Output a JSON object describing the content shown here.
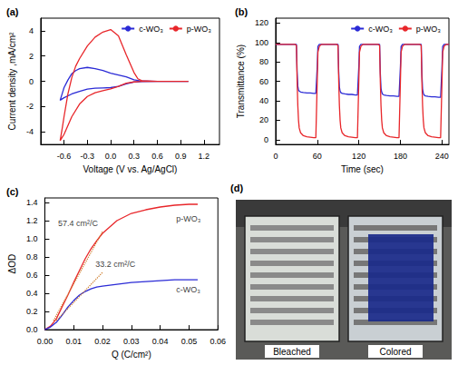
{
  "chart_data": [
    {
      "type": "line",
      "panel": "(a)",
      "x_label": "Voltage (V vs. Ag/AgCl)",
      "y_label": "Current density ,mA/cm²",
      "xlim": [
        -0.9,
        1.4
      ],
      "xticks": [
        -0.6,
        -0.3,
        {
          "value": 0,
          "label": "0.0"
        },
        0.3,
        0.6,
        0.9,
        1.2
      ],
      "ylim": [
        -5,
        5
      ],
      "yticks": [
        -4,
        -2,
        0,
        2,
        4
      ],
      "grid": false,
      "legend": "upper right",
      "series": [
        {
          "name": "c-WO₃",
          "color": "#2b2bd6",
          "x": [
            1.0,
            0.6,
            0.4,
            0.3,
            0.2,
            0.1,
            0.0,
            -0.1,
            -0.2,
            -0.3,
            -0.4,
            -0.5,
            -0.6,
            -0.65,
            -0.62,
            -0.6,
            -0.55,
            -0.5,
            -0.45,
            -0.4,
            -0.3,
            -0.2,
            -0.1,
            0.0,
            0.1,
            0.2,
            0.3,
            0.4,
            0.6,
            1.0
          ],
          "values": [
            0,
            0,
            -0.02,
            -0.05,
            -0.2,
            -0.4,
            -0.5,
            -0.52,
            -0.55,
            -0.62,
            -0.8,
            -1.0,
            -1.3,
            -1.5,
            -0.9,
            -0.5,
            0.1,
            0.6,
            0.85,
            1.0,
            1.1,
            1.0,
            0.85,
            0.65,
            0.5,
            0.35,
            0.12,
            0.02,
            0,
            0
          ]
        },
        {
          "name": "p-WO₃",
          "color": "#e8262a",
          "x": [
            1.0,
            0.6,
            0.4,
            0.3,
            0.2,
            0.1,
            0.0,
            -0.1,
            -0.2,
            -0.3,
            -0.4,
            -0.5,
            -0.6,
            -0.65,
            -0.62,
            -0.6,
            -0.55,
            -0.5,
            -0.45,
            -0.4,
            -0.3,
            -0.2,
            -0.1,
            0.0,
            0.1,
            0.2,
            0.3,
            0.35,
            0.4,
            0.6,
            1.0
          ],
          "values": [
            0,
            0,
            0,
            -0.05,
            -0.15,
            -0.4,
            -0.6,
            -0.75,
            -0.9,
            -1.2,
            -1.8,
            -2.8,
            -4.2,
            -4.7,
            -3.6,
            -2.8,
            -1.0,
            0.3,
            1.2,
            1.8,
            2.8,
            3.5,
            3.9,
            4.1,
            3.6,
            2.1,
            0.7,
            0.2,
            0.05,
            0,
            0
          ]
        }
      ]
    },
    {
      "type": "line",
      "panel": "(b)",
      "x_label": "Time (sec)",
      "y_label": "Transmittance (%)",
      "xlim": [
        0,
        250
      ],
      "xticks": [
        0,
        60,
        120,
        180,
        240
      ],
      "ylim": [
        -5,
        125
      ],
      "yticks": [
        0,
        20,
        40,
        60,
        80,
        100,
        120
      ],
      "grid": false,
      "legend": "upper right",
      "x": [
        0,
        6,
        28,
        30,
        31,
        32,
        33,
        34,
        36,
        40,
        45,
        50,
        55,
        58,
        60,
        61,
        63,
        66,
        88,
        90,
        91,
        92,
        93,
        94,
        96,
        100,
        105,
        110,
        115,
        118,
        120,
        121,
        123,
        126,
        148,
        150,
        151,
        152,
        153,
        154,
        156,
        160,
        165,
        170,
        175,
        178,
        180,
        181,
        183,
        186,
        208,
        210,
        211,
        212,
        213,
        214,
        216,
        220,
        225,
        230,
        235,
        238,
        240,
        241,
        243,
        246,
        250
      ],
      "series": [
        {
          "name": "c-WO₃",
          "color": "#2b2bd6",
          "values": [
            98,
            98,
            98,
            98,
            70,
            55,
            51,
            50,
            49,
            48.5,
            48,
            48,
            47.5,
            47.5,
            75,
            96,
            98,
            98,
            98,
            98,
            70,
            54,
            50,
            48.5,
            47.5,
            47,
            46.5,
            46.5,
            46,
            46,
            75,
            96,
            98,
            98,
            98,
            98,
            69,
            53,
            49,
            47,
            46,
            45.5,
            45,
            45,
            44.5,
            44.5,
            75,
            96,
            98,
            98,
            98,
            98,
            68,
            52,
            48,
            46,
            45,
            44.5,
            44,
            44,
            43.5,
            43.5,
            75,
            96,
            98,
            98,
            98
          ]
        },
        {
          "name": "p-WO₃",
          "color": "#e8262a",
          "values": [
            98,
            98,
            98,
            97,
            60,
            35,
            20,
            12,
            7,
            4,
            3,
            2.5,
            2,
            2,
            60,
            90,
            96,
            98,
            98,
            97,
            60,
            35,
            20,
            12,
            7,
            4,
            3,
            2.5,
            2,
            2,
            60,
            90,
            96,
            98,
            98,
            97,
            60,
            35,
            20,
            12,
            7,
            4,
            3,
            2.5,
            2,
            2,
            60,
            90,
            96,
            98,
            98,
            97,
            60,
            35,
            20,
            12,
            7,
            4,
            3,
            2.5,
            2,
            2,
            60,
            90,
            96,
            98,
            98
          ]
        }
      ]
    },
    {
      "type": "line",
      "panel": "(c)",
      "x_label": "Q (C/cm²)",
      "y_label": "ΔOD",
      "xlim": [
        0,
        0.06
      ],
      "xticks": [
        {
          "value": 0,
          "label": "0.00"
        },
        0.01,
        0.02,
        0.03,
        0.04,
        0.05,
        0.06
      ],
      "ylim": [
        0,
        1.45
      ],
      "yticks": [
        {
          "value": 0,
          "label": "0.0"
        },
        0.2,
        0.4,
        0.6,
        0.8,
        {
          "value": 1,
          "label": "1.0"
        },
        1.2,
        1.4
      ],
      "grid": false,
      "series": [
        {
          "name": "p-WO₃",
          "color": "#e8262a",
          "label_at": [
            0.044,
            1.22
          ],
          "x": [
            0,
            0.002,
            0.004,
            0.006,
            0.008,
            0.01,
            0.012,
            0.014,
            0.016,
            0.018,
            0.02,
            0.025,
            0.03,
            0.035,
            0.04,
            0.045,
            0.05,
            0.053
          ],
          "values": [
            0,
            0.04,
            0.12,
            0.25,
            0.38,
            0.52,
            0.65,
            0.78,
            0.89,
            0.98,
            1.06,
            1.2,
            1.28,
            1.32,
            1.35,
            1.37,
            1.38,
            1.38
          ]
        },
        {
          "name": "c-WO₃",
          "color": "#2b2bd6",
          "label_at": [
            0.044,
            0.44
          ],
          "x": [
            0,
            0.002,
            0.004,
            0.006,
            0.008,
            0.01,
            0.012,
            0.014,
            0.016,
            0.018,
            0.02,
            0.025,
            0.03,
            0.035,
            0.04,
            0.045,
            0.05,
            0.053
          ],
          "values": [
            0,
            0.03,
            0.08,
            0.16,
            0.25,
            0.32,
            0.38,
            0.42,
            0.45,
            0.47,
            0.48,
            0.5,
            0.52,
            0.53,
            0.54,
            0.55,
            0.55,
            0.55
          ]
        }
      ],
      "tangents": [
        {
          "x": [
            0.003,
            0.02
          ],
          "values": [
            0.1,
            1.08
          ],
          "color": "#cc7722",
          "line_style": "dotted"
        },
        {
          "x": [
            0.004,
            0.02
          ],
          "values": [
            0.1,
            0.63
          ],
          "color": "#cc7722",
          "line_style": "dotted"
        }
      ],
      "annotations": [
        {
          "text": "57.4 cm²/C",
          "x": 0.003,
          "y": 1.17
        },
        {
          "text": "33.2 cm²/C",
          "x": 0.016,
          "y": 0.72
        }
      ]
    }
  ],
  "photo": {
    "panel": "(d)",
    "captions": [
      "Bleached",
      "Colored"
    ]
  }
}
